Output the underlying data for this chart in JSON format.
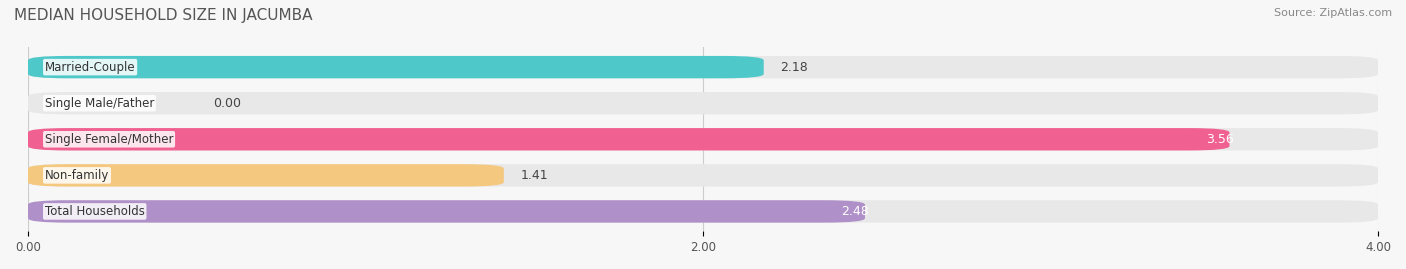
{
  "title": "MEDIAN HOUSEHOLD SIZE IN JACUMBA",
  "source": "Source: ZipAtlas.com",
  "categories": [
    "Married-Couple",
    "Single Male/Father",
    "Single Female/Mother",
    "Non-family",
    "Total Households"
  ],
  "values": [
    2.18,
    0.0,
    3.56,
    1.41,
    2.48
  ],
  "bar_colors": [
    "#4ec8c8",
    "#aab4e0",
    "#f06090",
    "#f5c880",
    "#b090c8"
  ],
  "value_label_colors": [
    "#444444",
    "#444444",
    "#ffffff",
    "#444444",
    "#ffffff"
  ],
  "xlim": [
    0,
    4.0
  ],
  "xticks": [
    0.0,
    2.0,
    4.0
  ],
  "xtick_labels": [
    "0.00",
    "2.00",
    "4.00"
  ],
  "title_fontsize": 11,
  "source_fontsize": 8,
  "bar_label_fontsize": 9,
  "category_fontsize": 8.5,
  "background_color": "#f7f7f7"
}
